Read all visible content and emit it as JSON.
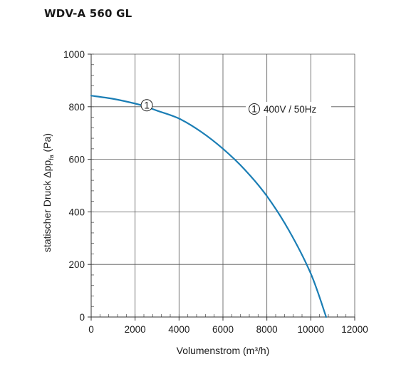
{
  "title": "WDV-A 560 GL",
  "chart_data": {
    "type": "line",
    "xlabel": "Volumenstrom (m³/h)",
    "ylabel_main": "statischer Druck Δp",
    "ylabel_sub": "fa",
    "ylabel_unit": "(Pa)",
    "xlim": [
      0,
      12000
    ],
    "ylim": [
      0,
      1000
    ],
    "x_ticks": [
      0,
      2000,
      4000,
      6000,
      8000,
      10000,
      12000
    ],
    "x_tick_labels": [
      "0",
      "2000",
      "4000",
      "6000",
      "8000",
      "10000",
      "12000"
    ],
    "y_ticks": [
      0,
      200,
      400,
      600,
      800,
      1000
    ],
    "y_tick_labels": [
      "0",
      "200",
      "400",
      "600",
      "800",
      "1000"
    ],
    "grid": true,
    "series": [
      {
        "name": "400V / 50Hz",
        "marker_label": "1",
        "color": "#1b7eb5",
        "x": [
          0,
          1000,
          2000,
          2500,
          3000,
          4000,
          5000,
          6000,
          7000,
          8000,
          9000,
          10000,
          10700
        ],
        "y": [
          842,
          830,
          812,
          800,
          785,
          755,
          705,
          640,
          560,
          460,
          330,
          165,
          0
        ]
      }
    ],
    "annotations": [
      {
        "marker_label": "1",
        "at_x": 2500,
        "at_y": 800
      },
      {
        "marker_label": "1",
        "text": "400V / 50Hz"
      }
    ]
  }
}
